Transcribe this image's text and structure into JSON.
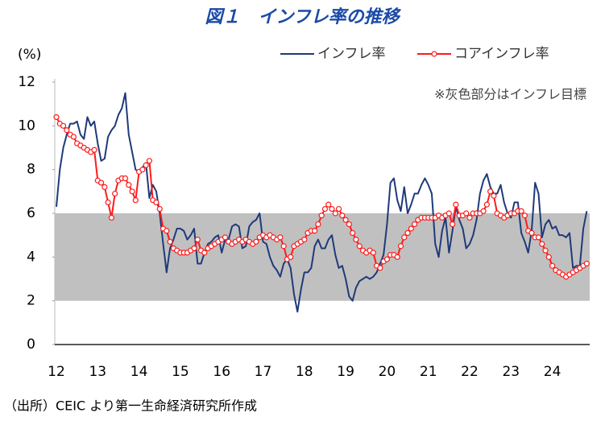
{
  "chart_data": {
    "type": "line",
    "title": "図１　インフレ率の推移",
    "ylabel": "(%)",
    "annotation": "※灰色部分はインフレ目標",
    "source": "（出所）CEIC より第一生命経済研究所作成",
    "target_band": [
      2,
      6
    ],
    "band_color": "#c0c0c0",
    "legend": "top-right",
    "ylim": [
      0,
      12
    ],
    "yticks": [
      0,
      2,
      4,
      6,
      8,
      10,
      12
    ],
    "categories": [
      "12",
      null,
      null,
      null,
      null,
      null,
      null,
      null,
      null,
      null,
      null,
      null,
      "13",
      null,
      null,
      null,
      null,
      null,
      null,
      null,
      null,
      null,
      null,
      null,
      "14",
      null,
      null,
      null,
      null,
      null,
      null,
      null,
      null,
      null,
      null,
      null,
      "15",
      null,
      null,
      null,
      null,
      null,
      null,
      null,
      null,
      null,
      null,
      null,
      "16",
      null,
      null,
      null,
      null,
      null,
      null,
      null,
      null,
      null,
      null,
      null,
      "17",
      null,
      null,
      null,
      null,
      null,
      null,
      null,
      null,
      null,
      null,
      null,
      "18",
      null,
      null,
      null,
      null,
      null,
      null,
      null,
      null,
      null,
      null,
      null,
      "19",
      null,
      null,
      null,
      null,
      null,
      null,
      null,
      null,
      null,
      null,
      null,
      "20",
      null,
      null,
      null,
      null,
      null,
      null,
      null,
      null,
      null,
      null,
      null,
      "21",
      null,
      null,
      null,
      null,
      null,
      null,
      null,
      null,
      null,
      null,
      null,
      "22",
      null,
      null,
      null,
      null,
      null,
      null,
      null,
      null,
      null,
      null,
      null,
      "23",
      null,
      null,
      null,
      null,
      null,
      null,
      null,
      null,
      null,
      null,
      null,
      "24",
      null,
      null,
      null,
      null,
      null,
      null,
      null,
      null,
      null,
      null
    ],
    "series": [
      {
        "name": "インフレ率",
        "color": "#1f3a7a",
        "marker": false,
        "values": [
          6.3,
          8.0,
          9.0,
          9.6,
          10.1,
          10.1,
          10.2,
          9.6,
          9.4,
          10.4,
          10.0,
          10.2,
          9.2,
          8.4,
          8.5,
          9.5,
          9.8,
          10.0,
          10.5,
          10.8,
          11.5,
          9.6,
          8.8,
          8.0,
          7.9,
          8.1,
          8.3,
          6.7,
          7.3,
          7.0,
          6.0,
          4.6,
          3.3,
          4.4,
          4.8,
          5.3,
          5.3,
          5.2,
          4.8,
          5.0,
          5.3,
          3.7,
          3.7,
          4.2,
          4.6,
          4.7,
          4.9,
          5.0,
          4.2,
          4.8,
          4.8,
          5.4,
          5.5,
          5.4,
          4.4,
          4.5,
          5.4,
          5.6,
          5.7,
          6.0,
          4.7,
          4.6,
          4.0,
          3.6,
          3.4,
          3.1,
          3.7,
          3.9,
          3.5,
          2.3,
          1.5,
          2.5,
          3.3,
          3.3,
          3.5,
          4.5,
          4.8,
          4.4,
          4.4,
          4.8,
          5.0,
          4.1,
          3.5,
          3.6,
          3.0,
          2.2,
          2.0,
          2.6,
          2.9,
          3.0,
          3.1,
          3.0,
          3.1,
          3.3,
          3.7,
          4.1,
          5.5,
          7.4,
          7.6,
          6.6,
          6.1,
          7.2,
          6.0,
          6.4,
          6.9,
          6.9,
          7.3,
          7.6,
          7.3,
          6.9,
          4.6,
          4.0,
          5.2,
          5.8,
          4.2,
          5.2,
          6.3,
          5.7,
          5.3,
          4.4,
          4.6,
          5.0,
          5.7,
          6.9,
          7.5,
          7.8,
          7.2,
          6.9,
          6.9,
          7.3,
          6.5,
          6.0,
          5.8,
          6.5,
          6.5,
          5.1,
          4.7,
          4.2,
          5.2,
          7.4,
          6.9,
          4.9,
          5.5,
          5.7,
          5.3,
          5.4,
          5.0,
          5.0,
          4.9,
          5.1,
          3.5,
          3.6,
          3.6,
          5.3,
          6.1
        ]
      },
      {
        "name": "コアインフレ率",
        "color": "#ff1a1a",
        "marker": true,
        "values": [
          10.4,
          10.1,
          10.0,
          9.8,
          9.6,
          9.5,
          9.2,
          9.1,
          9.0,
          8.9,
          8.8,
          8.9,
          7.5,
          7.4,
          7.2,
          6.5,
          5.8,
          6.9,
          7.5,
          7.6,
          7.6,
          7.3,
          7.0,
          6.6,
          7.9,
          8.0,
          8.2,
          8.4,
          6.6,
          6.5,
          6.2,
          5.3,
          5.2,
          4.7,
          4.4,
          4.3,
          4.2,
          4.2,
          4.2,
          4.3,
          4.4,
          4.8,
          4.3,
          4.2,
          4.4,
          4.5,
          4.6,
          4.7,
          4.8,
          4.9,
          4.7,
          4.6,
          4.7,
          4.8,
          4.7,
          4.8,
          4.7,
          4.6,
          4.7,
          4.9,
          5.0,
          4.9,
          5.0,
          4.9,
          4.8,
          4.9,
          4.5,
          3.9,
          4.0,
          4.5,
          4.6,
          4.7,
          4.8,
          5.1,
          5.2,
          5.2,
          5.5,
          5.9,
          6.2,
          6.4,
          6.2,
          6.0,
          6.2,
          5.9,
          5.7,
          5.5,
          5.1,
          4.8,
          4.5,
          4.3,
          4.2,
          4.3,
          4.2,
          3.6,
          3.5,
          3.8,
          3.9,
          4.1,
          4.1,
          4.0,
          4.5,
          4.9,
          5.1,
          5.3,
          5.5,
          5.7,
          5.8,
          5.8,
          5.8,
          5.8,
          5.8,
          5.9,
          5.8,
          5.9,
          6.0,
          5.5,
          6.4,
          5.9,
          5.9,
          6.0,
          5.8,
          6.0,
          6.0,
          6.0,
          6.1,
          6.4,
          7.0,
          6.8,
          6.0,
          5.9,
          5.8,
          5.9,
          6.0,
          6.0,
          6.1,
          6.1,
          5.9,
          5.2,
          5.1,
          4.9,
          4.9,
          4.6,
          4.3,
          4.0,
          3.6,
          3.4,
          3.3,
          3.2,
          3.1,
          3.2,
          3.3,
          3.4,
          3.5,
          3.6,
          3.7
        ]
      }
    ]
  }
}
